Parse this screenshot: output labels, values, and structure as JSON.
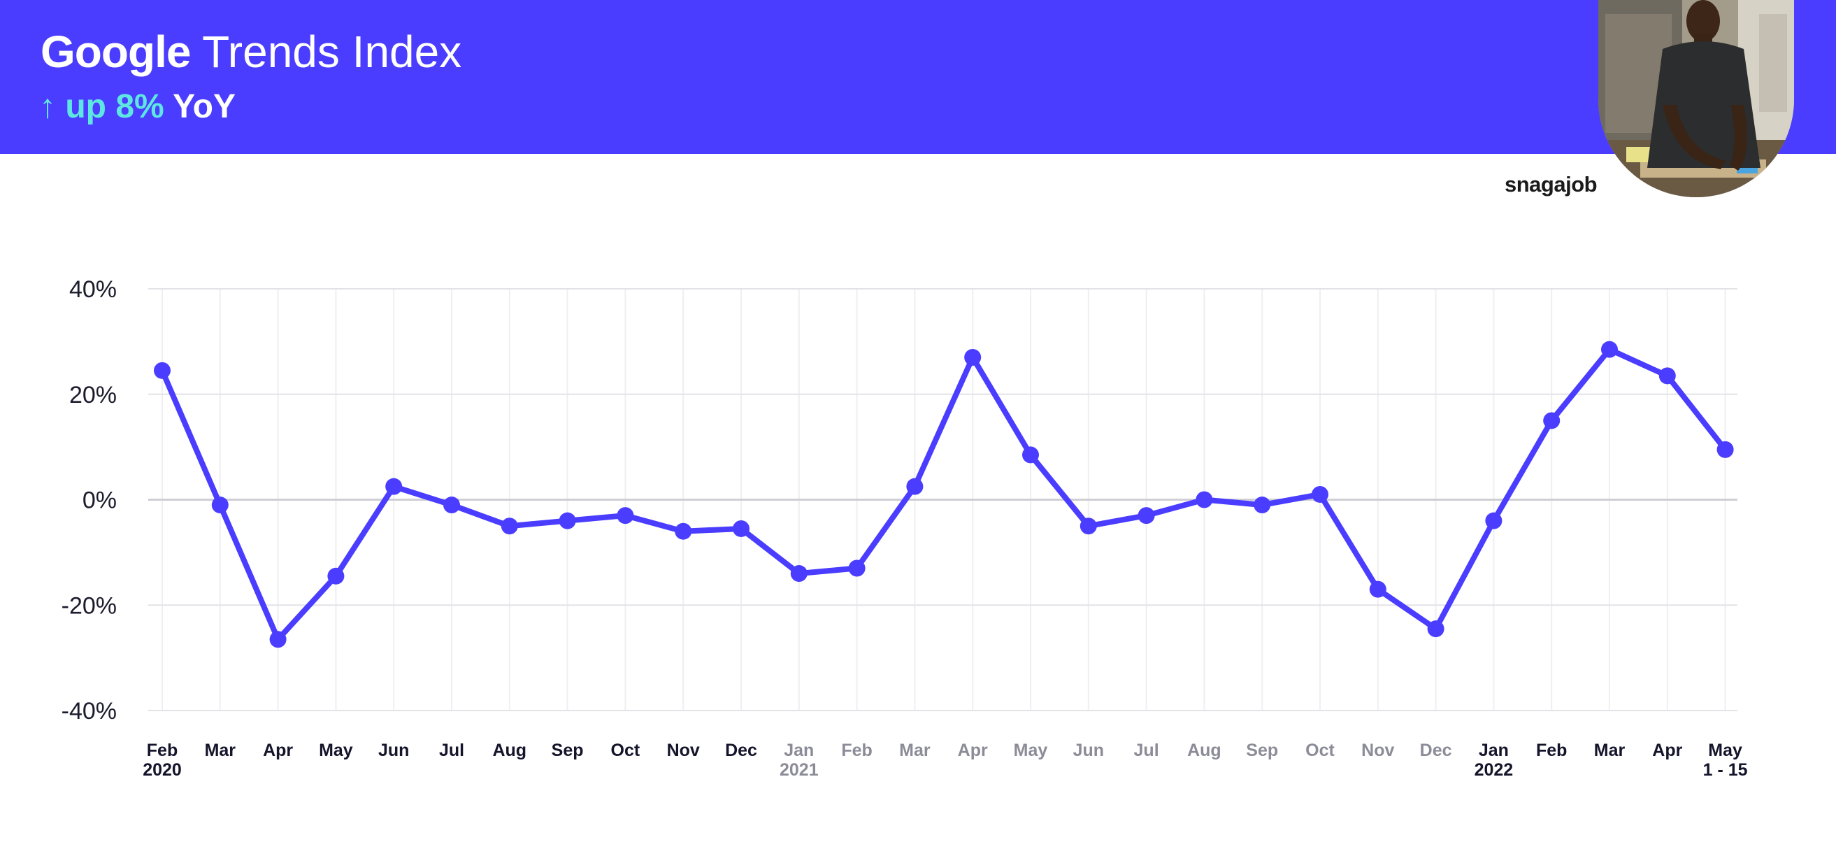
{
  "header": {
    "title_brand": "Google",
    "title_rest": "Trends Index",
    "subtitle_arrow": "↑",
    "subtitle_change": "up 8%",
    "subtitle_period": "YoY"
  },
  "logo": "snagajob",
  "colors": {
    "banner": "#4a3dff",
    "line": "#4a3dff",
    "highlight": "#5ee6e0",
    "muted_label": "#8c8c98",
    "label": "#14142b"
  },
  "chart_data": {
    "type": "line",
    "title": "",
    "xlabel": "",
    "ylabel": "",
    "ylim": [
      -40,
      40
    ],
    "yticks": [
      -40,
      -20,
      0,
      20,
      40
    ],
    "ytick_labels": [
      "-40%",
      "-20%",
      "0%",
      "20%",
      "40%"
    ],
    "grid": true,
    "categories": [
      {
        "month": "Feb",
        "year": "2020",
        "muted": false
      },
      {
        "month": "Mar",
        "year": "",
        "muted": false
      },
      {
        "month": "Apr",
        "year": "",
        "muted": false
      },
      {
        "month": "May",
        "year": "",
        "muted": false
      },
      {
        "month": "Jun",
        "year": "",
        "muted": false
      },
      {
        "month": "Jul",
        "year": "",
        "muted": false
      },
      {
        "month": "Aug",
        "year": "",
        "muted": false
      },
      {
        "month": "Sep",
        "year": "",
        "muted": false
      },
      {
        "month": "Oct",
        "year": "",
        "muted": false
      },
      {
        "month": "Nov",
        "year": "",
        "muted": false
      },
      {
        "month": "Dec",
        "year": "",
        "muted": false
      },
      {
        "month": "Jan",
        "year": "2021",
        "muted": true
      },
      {
        "month": "Feb",
        "year": "",
        "muted": true
      },
      {
        "month": "Mar",
        "year": "",
        "muted": true
      },
      {
        "month": "Apr",
        "year": "",
        "muted": true
      },
      {
        "month": "May",
        "year": "",
        "muted": true
      },
      {
        "month": "Jun",
        "year": "",
        "muted": true
      },
      {
        "month": "Jul",
        "year": "",
        "muted": true
      },
      {
        "month": "Aug",
        "year": "",
        "muted": true
      },
      {
        "month": "Sep",
        "year": "",
        "muted": true
      },
      {
        "month": "Oct",
        "year": "",
        "muted": true
      },
      {
        "month": "Nov",
        "year": "",
        "muted": true
      },
      {
        "month": "Dec",
        "year": "",
        "muted": true
      },
      {
        "month": "Jan",
        "year": "2022",
        "muted": false
      },
      {
        "month": "Feb",
        "year": "",
        "muted": false
      },
      {
        "month": "Mar",
        "year": "",
        "muted": false
      },
      {
        "month": "Apr",
        "year": "",
        "muted": false
      },
      {
        "month": "May",
        "year": "1 - 15",
        "muted": false
      }
    ],
    "series": [
      {
        "values": [
          24.5,
          -1,
          -26.5,
          -14.5,
          2.5,
          -1,
          -5,
          -4,
          -3,
          -6,
          -5.5,
          -14,
          -13,
          2.5,
          27,
          8.5,
          -5,
          -3,
          0,
          -1,
          1,
          -17,
          -24.5,
          -4,
          15,
          28.5,
          23.5,
          9.5
        ]
      }
    ]
  }
}
